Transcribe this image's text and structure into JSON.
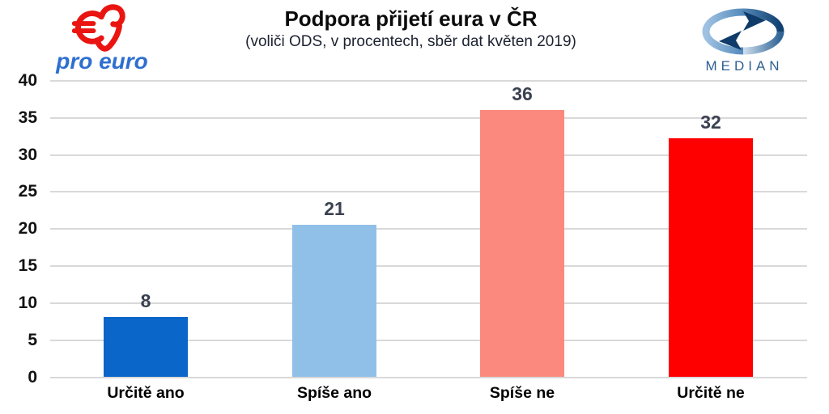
{
  "header": {
    "title": "Podpora přijetí eura v ČR",
    "subtitle": "(voliči ODS, v procentech, sběr dat květen 2019)"
  },
  "logos": {
    "pro_euro": {
      "text": "pro euro",
      "text_color": "#2e6fd0",
      "heart_color": "#ea1410"
    },
    "median": {
      "text": "MEDIAN",
      "text_color": "#2e6091",
      "ring_light": "#9fc2e2",
      "ring_dark": "#10406f",
      "arrow_color": "#0e3b69"
    }
  },
  "chart_data": {
    "type": "bar",
    "title": "Podpora přijetí eura v ČR",
    "subtitle": "(voliči ODS, v procentech, sběr dat květen 2019)",
    "categories": [
      "Určitě ano",
      "Spíše ano",
      "Spíše ne",
      "Určitě ne"
    ],
    "values": [
      8,
      21,
      36,
      32
    ],
    "plot_values": [
      8.1,
      20.6,
      36.1,
      32.3
    ],
    "bar_colors": [
      "#0a66c8",
      "#90c0e8",
      "#fb897d",
      "#ff0000"
    ],
    "value_label_color": "#3a4150",
    "ylim": [
      0,
      40
    ],
    "yticks": [
      0,
      5,
      10,
      15,
      20,
      25,
      30,
      35,
      40
    ],
    "grid": true,
    "gridline_color": "#d9d9d9",
    "legend": "none",
    "xlabel": "",
    "ylabel": ""
  }
}
